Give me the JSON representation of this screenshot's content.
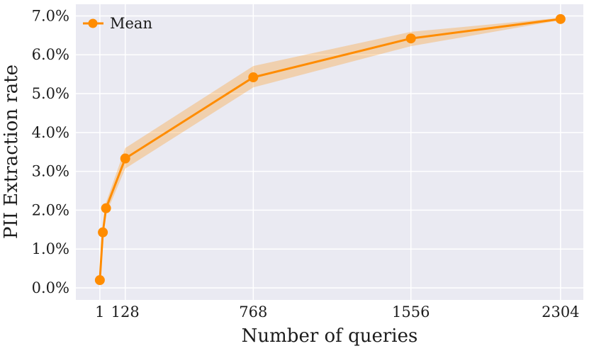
{
  "chart_data": {
    "type": "line",
    "title": "",
    "xlabel": "Number of queries",
    "ylabel": "PII Extraction rate",
    "x": [
      1,
      16,
      32,
      128,
      768,
      1556,
      2304
    ],
    "series": [
      {
        "name": "Mean",
        "values_percent": [
          0.2,
          1.43,
          2.05,
          3.33,
          5.42,
          6.42,
          6.92
        ],
        "band_low_percent": [
          0.16,
          1.33,
          1.9,
          3.07,
          5.16,
          6.22,
          6.89
        ],
        "band_high_percent": [
          0.24,
          1.53,
          2.2,
          3.6,
          5.71,
          6.59,
          6.95
        ],
        "color": "#ff8c00"
      }
    ],
    "xticks": {
      "values": [
        1,
        128,
        768,
        1556,
        2304
      ],
      "labels": [
        "1",
        "128",
        "768",
        "1556",
        "2304"
      ]
    },
    "yticks": {
      "values": [
        0,
        1,
        2,
        3,
        4,
        5,
        6,
        7
      ],
      "labels": [
        "0.0%",
        "1.0%",
        "2.0%",
        "3.0%",
        "4.0%",
        "5.0%",
        "6.0%",
        "7.0%"
      ]
    },
    "xlim": [
      -119,
      2418
    ],
    "ylim": [
      -0.31,
      7.3
    ],
    "grid": true,
    "legend_position": "upper-left",
    "legend_frame": false,
    "marker": "circle",
    "colors": {
      "line": "#ff8c00",
      "band": "#ff8c00",
      "band_opacity": 0.28,
      "plot_background": "#eaeaf2",
      "grid": "#ffffff",
      "text": "#1c1c1c"
    }
  }
}
